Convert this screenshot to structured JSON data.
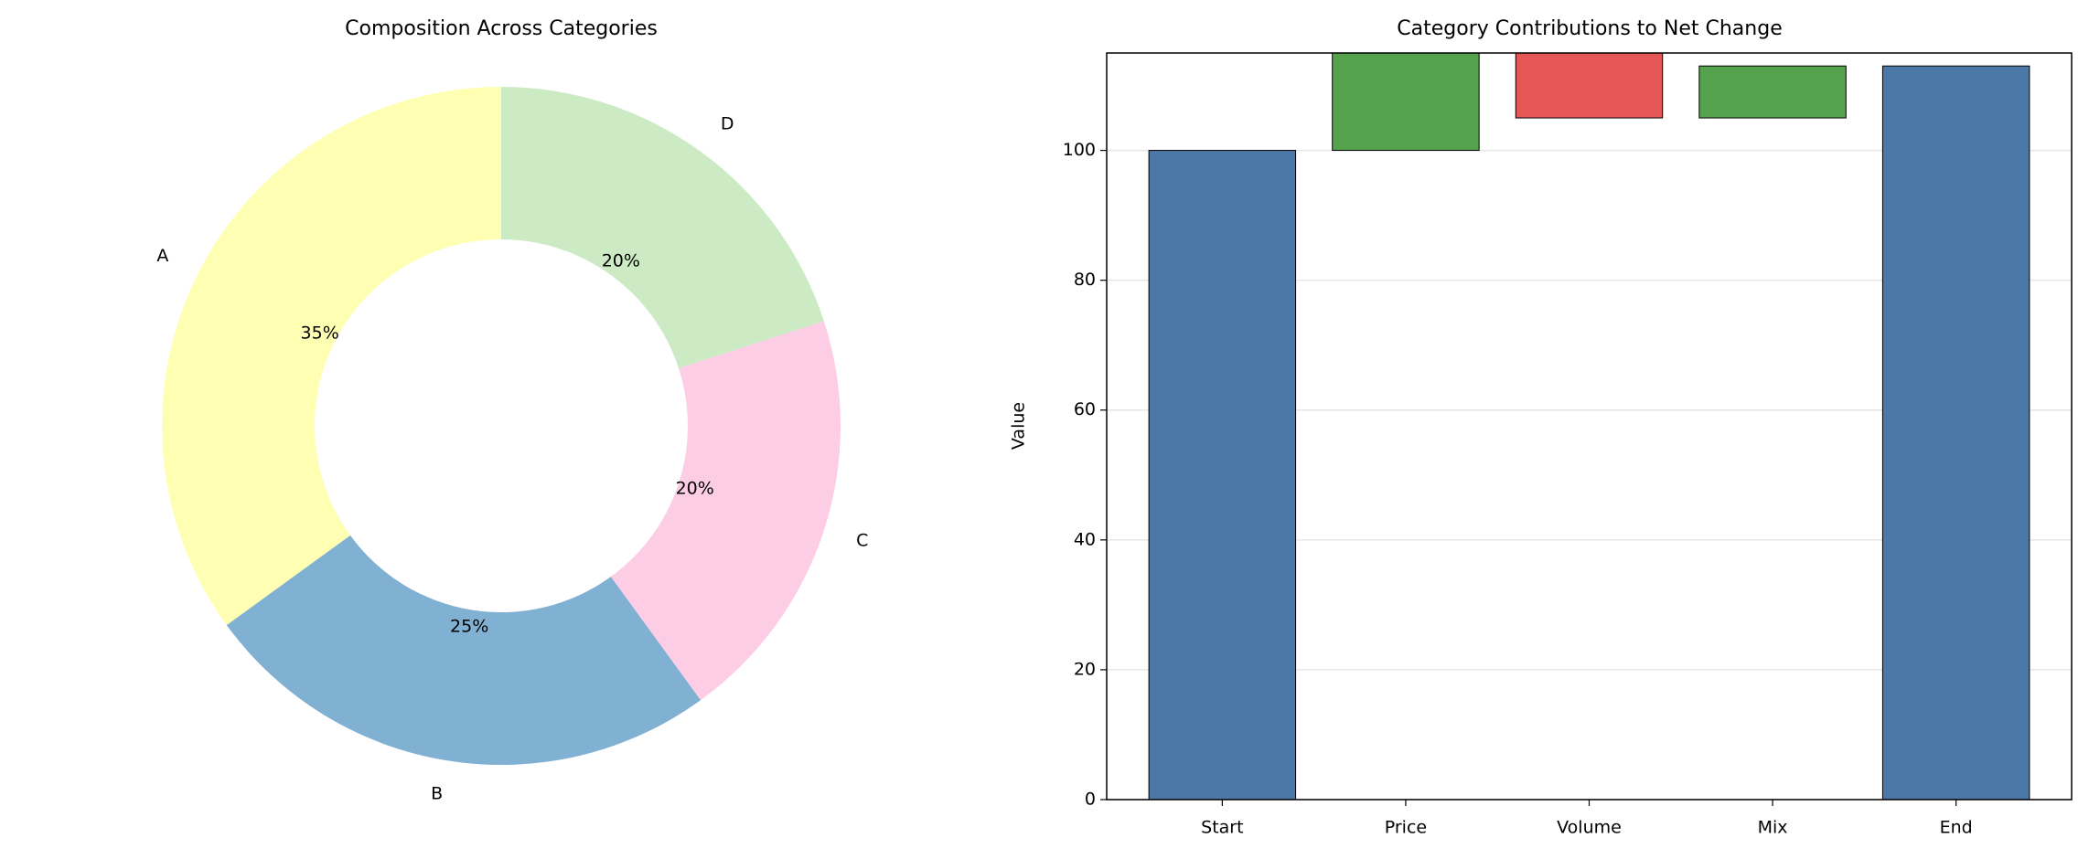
{
  "chart_data": [
    {
      "type": "pie",
      "title": "Composition Across Categories",
      "categories": [
        "A",
        "B",
        "C",
        "D"
      ],
      "values": [
        35,
        25,
        20,
        20
      ],
      "value_labels": [
        "35%",
        "25%",
        "20%",
        "20%"
      ],
      "colors": [
        "#ffffb3",
        "#80b1d3",
        "#fccde5",
        "#ccebc5"
      ]
    },
    {
      "type": "waterfall",
      "title": "Category Contributions to Net Change",
      "y_label": "Value",
      "categories": [
        "Start",
        "Price",
        "Volume",
        "Mix",
        "End"
      ],
      "values": [
        100,
        15,
        -10,
        8,
        113
      ],
      "colors": [
        "#4c78a8",
        "#54a24b",
        "#e45756",
        "#54a24b",
        "#4c78a8"
      ],
      "ylim": [
        0,
        115
      ],
      "yticks": [
        0,
        20,
        40,
        60,
        80,
        100
      ],
      "grid": true
    }
  ]
}
